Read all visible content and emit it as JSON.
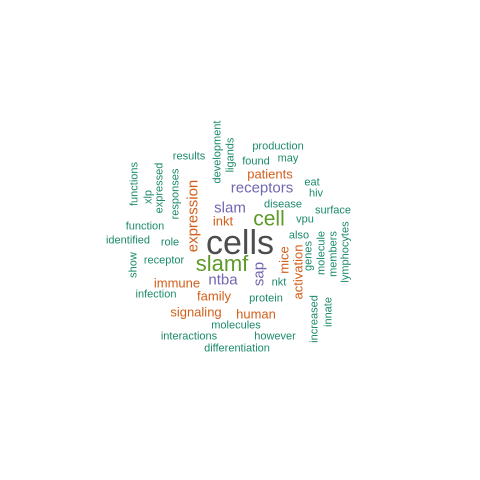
{
  "palette": {
    "grey": "#4d4d4d",
    "green": "#5e9a2a",
    "purple": "#7067b0",
    "orange": "#d25f1a",
    "teal": "#1b8a6b"
  },
  "words": [
    {
      "text": "cells",
      "tier": "t1",
      "color": "grey"
    },
    {
      "text": "slamf",
      "tier": "t2",
      "color": "green"
    },
    {
      "text": "cell",
      "tier": "t2",
      "color": "green"
    },
    {
      "text": "expression",
      "tier": "t3",
      "color": "orange"
    },
    {
      "text": "receptors",
      "tier": "t3",
      "color": "purple"
    },
    {
      "text": "slam",
      "tier": "t3",
      "color": "purple"
    },
    {
      "text": "sap",
      "tier": "t3",
      "color": "purple"
    },
    {
      "text": "ntba",
      "tier": "t3",
      "color": "purple"
    },
    {
      "text": "patients",
      "tier": "t4",
      "color": "orange"
    },
    {
      "text": "immune",
      "tier": "t4",
      "color": "orange"
    },
    {
      "text": "family",
      "tier": "t4",
      "color": "orange"
    },
    {
      "text": "signaling",
      "tier": "t4",
      "color": "orange"
    },
    {
      "text": "human",
      "tier": "t4",
      "color": "orange"
    },
    {
      "text": "mice",
      "tier": "t4",
      "color": "orange"
    },
    {
      "text": "activation",
      "tier": "t4",
      "color": "orange"
    },
    {
      "text": "inkt",
      "tier": "t4",
      "color": "orange"
    },
    {
      "text": "production",
      "tier": "t5",
      "color": "teal"
    },
    {
      "text": "may",
      "tier": "t5",
      "color": "teal"
    },
    {
      "text": "results",
      "tier": "t5",
      "color": "teal"
    },
    {
      "text": "found",
      "tier": "t5",
      "color": "teal"
    },
    {
      "text": "development",
      "tier": "t5",
      "color": "teal"
    },
    {
      "text": "ligands",
      "tier": "t5",
      "color": "teal"
    },
    {
      "text": "functions",
      "tier": "t5",
      "color": "teal"
    },
    {
      "text": "xlp",
      "tier": "t5",
      "color": "teal"
    },
    {
      "text": "expressed",
      "tier": "t5",
      "color": "teal"
    },
    {
      "text": "responses",
      "tier": "t5",
      "color": "teal"
    },
    {
      "text": "eat",
      "tier": "t5",
      "color": "teal"
    },
    {
      "text": "hiv",
      "tier": "t5",
      "color": "teal"
    },
    {
      "text": "disease",
      "tier": "t5",
      "color": "teal"
    },
    {
      "text": "surface",
      "tier": "t5",
      "color": "teal"
    },
    {
      "text": "vpu",
      "tier": "t5",
      "color": "teal"
    },
    {
      "text": "function",
      "tier": "t5",
      "color": "teal"
    },
    {
      "text": "identified",
      "tier": "t5",
      "color": "teal"
    },
    {
      "text": "role",
      "tier": "t5",
      "color": "teal"
    },
    {
      "text": "also",
      "tier": "t5",
      "color": "teal"
    },
    {
      "text": "genes",
      "tier": "t5",
      "color": "teal"
    },
    {
      "text": "molecule",
      "tier": "t5",
      "color": "teal"
    },
    {
      "text": "members",
      "tier": "t5",
      "color": "teal"
    },
    {
      "text": "lymphocytes",
      "tier": "t5",
      "color": "teal"
    },
    {
      "text": "show",
      "tier": "t5",
      "color": "teal"
    },
    {
      "text": "receptor",
      "tier": "t5",
      "color": "teal"
    },
    {
      "text": "infection",
      "tier": "t5",
      "color": "teal"
    },
    {
      "text": "nkt",
      "tier": "t5",
      "color": "teal"
    },
    {
      "text": "protein",
      "tier": "t5",
      "color": "teal"
    },
    {
      "text": "increased",
      "tier": "t5",
      "color": "teal"
    },
    {
      "text": "innate",
      "tier": "t5",
      "color": "teal"
    },
    {
      "text": "molecules",
      "tier": "t5",
      "color": "teal"
    },
    {
      "text": "interactions",
      "tier": "t5",
      "color": "teal"
    },
    {
      "text": "however",
      "tier": "t5",
      "color": "teal"
    },
    {
      "text": "differentiation",
      "tier": "t5",
      "color": "teal"
    }
  ]
}
